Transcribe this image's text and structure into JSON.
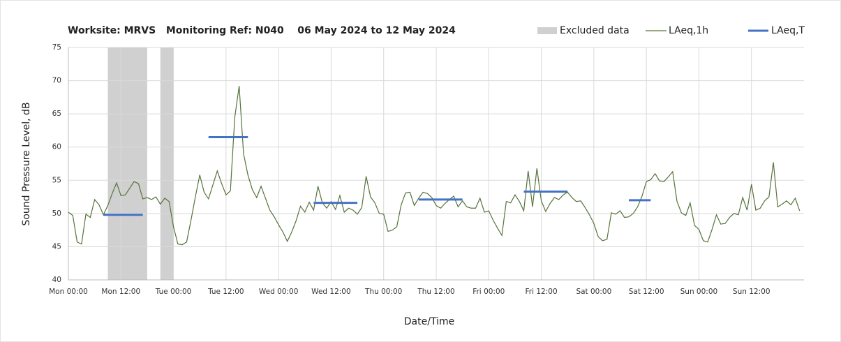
{
  "chart_data": {
    "type": "line",
    "title": "Worksite: MRVS   Monitoring Ref: N040    06 May 2024 to 12 May 2024",
    "xlabel": "Date/Time",
    "ylabel": "Sound Pressure Level, dB",
    "xlim": [
      0,
      168
    ],
    "ylim": [
      40,
      75
    ],
    "xticks": [
      {
        "value": 0,
        "label": "Mon 00:00"
      },
      {
        "value": 12,
        "label": "Mon 12:00"
      },
      {
        "value": 24,
        "label": "Tue 00:00"
      },
      {
        "value": 36,
        "label": "Tue 12:00"
      },
      {
        "value": 48,
        "label": "Wed 00:00"
      },
      {
        "value": 60,
        "label": "Wed 12:00"
      },
      {
        "value": 72,
        "label": "Thu 00:00"
      },
      {
        "value": 84,
        "label": "Thu 12:00"
      },
      {
        "value": 96,
        "label": "Fri 00:00"
      },
      {
        "value": 108,
        "label": "Fri 12:00"
      },
      {
        "value": 120,
        "label": "Sat 00:00"
      },
      {
        "value": 132,
        "label": "Sat 12:00"
      },
      {
        "value": 144,
        "label": "Sun 00:00"
      },
      {
        "value": 156,
        "label": "Sun 12:00"
      }
    ],
    "yticks": [
      40,
      45,
      50,
      55,
      60,
      65,
      70,
      75
    ],
    "grid": true,
    "legend": "top-right",
    "excluded": {
      "name": "Excluded data",
      "color": "#d0d0d0",
      "x_start": [
        9,
        21
      ],
      "x_end": [
        18,
        24
      ]
    },
    "series": [
      {
        "name": "LAeq,1h",
        "color": "#55733a",
        "x": [
          0,
          1,
          2,
          3,
          4,
          5,
          6,
          7,
          8,
          9,
          10,
          11,
          12,
          13,
          14,
          15,
          16,
          17,
          18,
          19,
          20,
          21,
          22,
          23,
          24,
          25,
          26,
          27,
          28,
          29,
          30,
          31,
          32,
          33,
          34,
          35,
          36,
          37,
          38,
          39,
          40,
          41,
          42,
          43,
          44,
          45,
          46,
          47,
          48,
          49,
          50,
          51,
          52,
          53,
          54,
          55,
          56,
          57,
          58,
          59,
          60,
          61,
          62,
          63,
          64,
          65,
          66,
          67,
          68,
          69,
          70,
          71,
          72,
          73,
          74,
          75,
          76,
          77,
          78,
          79,
          80,
          81,
          82,
          83,
          84,
          85,
          86,
          87,
          88,
          89,
          90,
          91,
          92,
          93,
          94,
          95,
          96,
          97,
          98,
          99,
          100,
          101,
          102,
          103,
          104,
          105,
          106,
          107,
          108,
          109,
          110,
          111,
          112,
          113,
          114,
          115,
          116,
          117,
          118,
          119,
          120,
          121,
          122,
          123,
          124,
          125,
          126,
          127,
          128,
          129,
          130,
          131,
          132,
          133,
          134,
          135,
          136,
          137,
          138,
          139,
          140,
          141,
          142,
          143,
          144,
          145,
          146,
          147,
          148,
          149,
          150,
          151,
          152,
          153,
          154,
          155,
          156,
          157,
          158,
          159,
          160,
          161,
          162,
          163,
          164,
          165,
          166,
          167
        ],
        "values": [
          50.2,
          49.7,
          45.7,
          45.4,
          49.9,
          49.4,
          52.1,
          51.3,
          49.8,
          51.2,
          53.0,
          54.6,
          52.7,
          52.8,
          53.8,
          54.8,
          54.5,
          52.2,
          52.4,
          52.1,
          52.5,
          51.4,
          52.3,
          51.8,
          48.0,
          45.4,
          45.3,
          45.7,
          49.0,
          52.5,
          55.8,
          53.2,
          52.2,
          54.3,
          56.4,
          54.5,
          52.8,
          53.4,
          64.5,
          69.2,
          59.0,
          55.8,
          53.6,
          52.4,
          54.1,
          52.3,
          50.5,
          49.5,
          48.3,
          47.2,
          45.8,
          47.2,
          48.9,
          51.1,
          50.2,
          51.7,
          50.5,
          54.1,
          51.6,
          50.8,
          51.8,
          50.6,
          52.7,
          50.2,
          50.8,
          50.5,
          49.9,
          50.9,
          55.6,
          52.5,
          51.6,
          50.0,
          49.9,
          47.3,
          47.5,
          48.0,
          51.3,
          53.1,
          53.2,
          51.2,
          52.3,
          53.2,
          53.0,
          52.4,
          51.2,
          50.8,
          51.5,
          52.1,
          52.6,
          51.0,
          51.9,
          51.0,
          50.8,
          50.8,
          52.3,
          50.2,
          50.4,
          49.0,
          47.8,
          46.7,
          51.8,
          51.6,
          52.8,
          51.8,
          50.4,
          56.4,
          51.0,
          56.8,
          51.9,
          50.3,
          51.5,
          52.4,
          52.1,
          52.8,
          53.2,
          52.4,
          51.8,
          51.9,
          50.9,
          49.8,
          48.5,
          46.5,
          45.9,
          46.1,
          50.1,
          49.9,
          50.4,
          49.4,
          49.5,
          50.0,
          51.0,
          52.6,
          54.8,
          55.1,
          56.0,
          54.9,
          54.8,
          55.5,
          56.3,
          51.8,
          50.1,
          49.7,
          51.6,
          48.2,
          47.6,
          45.9,
          45.7,
          47.6,
          49.8,
          48.4,
          48.5,
          49.4,
          50.0,
          49.8,
          52.4,
          50.5,
          54.4,
          50.5,
          50.8,
          51.9,
          52.5,
          57.7,
          51.0,
          51.4,
          51.9,
          51.3,
          52.3,
          50.4
        ]
      },
      {
        "name": "LAeq,T",
        "color": "#4472c4",
        "x_start": [
          8,
          32,
          56,
          80,
          104,
          128
        ],
        "x_end": [
          17,
          41,
          66,
          90,
          114,
          133
        ],
        "values": [
          49.8,
          61.5,
          51.6,
          52.1,
          53.3,
          52.0
        ]
      }
    ]
  }
}
